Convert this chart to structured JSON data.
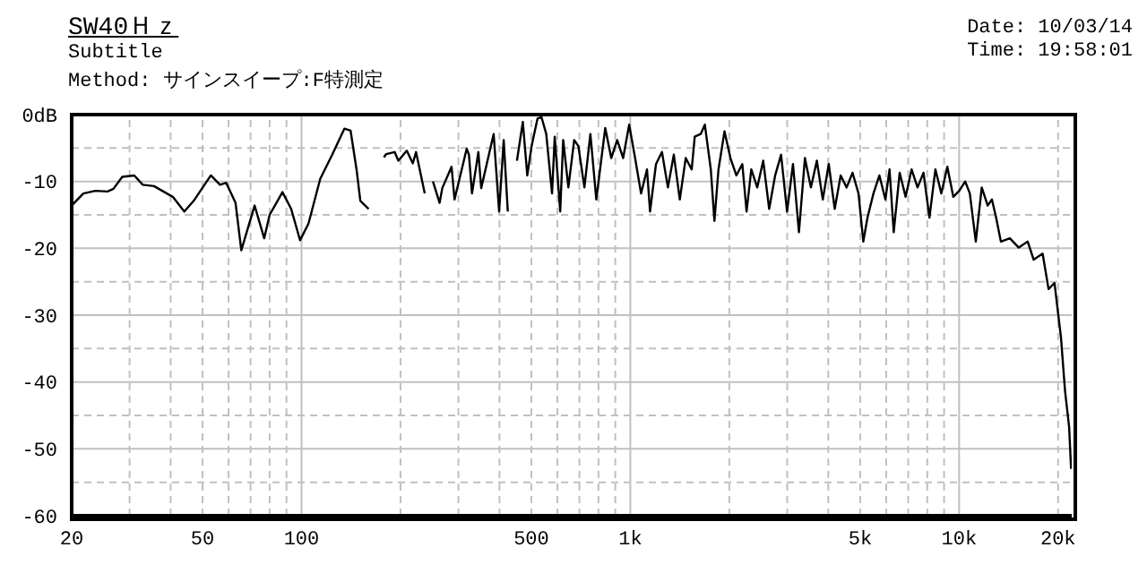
{
  "chart_data": {
    "type": "line",
    "title": "SW40Ｈｚ",
    "subtitle": "Subtitle",
    "annotations": [
      "Method: サインスイープ:F特測定",
      "Date: 10/03/14",
      "Time: 19:58:01"
    ],
    "log": "x",
    "grid": true,
    "marker": "none",
    "line_style": "solid",
    "xlim": [
      20,
      22000
    ],
    "xticks": [
      20,
      {
        "value": 30,
        "label": null
      },
      {
        "value": 40,
        "label": null
      },
      50,
      {
        "value": 60,
        "label": null
      },
      {
        "value": 70,
        "label": null
      },
      {
        "value": 80,
        "label": null
      },
      {
        "value": 90,
        "label": null
      },
      100,
      {
        "value": 200,
        "label": null
      },
      {
        "value": 300,
        "label": null
      },
      {
        "value": 400,
        "label": null
      },
      500,
      {
        "value": 600,
        "label": null
      },
      {
        "value": 700,
        "label": null
      },
      {
        "value": 800,
        "label": null
      },
      {
        "value": 900,
        "label": null
      },
      {
        "value": 1000,
        "label": "1k"
      },
      {
        "value": 2000,
        "label": null
      },
      {
        "value": 3000,
        "label": null
      },
      {
        "value": 4000,
        "label": null
      },
      {
        "value": 5000,
        "label": "5k"
      },
      {
        "value": 6000,
        "label": null
      },
      {
        "value": 7000,
        "label": null
      },
      {
        "value": 8000,
        "label": null
      },
      {
        "value": 9000,
        "label": null
      },
      {
        "value": 10000,
        "label": "10k"
      },
      {
        "value": 20000,
        "label": "20k"
      }
    ],
    "ylim": [
      -60,
      0
    ],
    "yticks": [
      {
        "value": 0,
        "label": "0dB"
      },
      {
        "value": -5,
        "label": null
      },
      -10,
      {
        "value": -15,
        "label": null
      },
      -20,
      {
        "value": -25,
        "label": null
      },
      -30,
      {
        "value": -35,
        "label": null
      },
      -40,
      {
        "value": -45,
        "label": null
      },
      -50,
      {
        "value": -55,
        "label": null
      },
      -60
    ],
    "series": [
      {
        "color": "#000000",
        "x": [
          20,
          21.7,
          23.6,
          25.7,
          26.8,
          28.5,
          31,
          32.9,
          35.6,
          40.6,
          44,
          47,
          53,
          56.5,
          59,
          63,
          65.6,
          72,
          77,
          80,
          87.5,
          93,
          99,
          105,
          114,
          124,
          135,
          141,
          147,
          151,
          160,
          168,
          178,
          181,
          192,
          197,
          209,
          218,
          223,
          237,
          245,
          251,
          263,
          268,
          286,
          292,
          318,
          323,
          330,
          345,
          352,
          375,
          384,
          399,
          412,
          424,
          438,
          452,
          471,
          486,
          501,
          522,
          537,
          555,
          578,
          589,
          612,
          625,
          648,
          675,
          695,
          725,
          756,
          788,
          839,
          875,
          912,
          951,
          992,
          1034,
          1078,
          1124,
          1148,
          1197,
          1248,
          1301,
          1356,
          1414,
          1474,
          1537,
          1570,
          1637,
          1685,
          1757,
          1802,
          1854,
          1934,
          2016,
          2101,
          2191,
          2257,
          2333,
          2432,
          2536,
          2644,
          2757,
          2874,
          2997,
          3124,
          3257,
          3396,
          3541,
          3692,
          3849,
          4013,
          4184,
          4362,
          4548,
          4741,
          4943,
          5112,
          5264,
          5488,
          5722,
          5966,
          6143,
          6325,
          6594,
          6875,
          7168,
          7473,
          7791,
          8123,
          8469,
          8830,
          9206,
          9598,
          10007,
          10433,
          10778,
          11237,
          11716,
          12215,
          12579,
          12954,
          13397,
          14262,
          15183,
          16164,
          16852,
          17942,
          18705,
          19501,
          20400,
          21000,
          21600,
          21900
        ],
        "values": [
          -13.6,
          -11.8,
          -11.4,
          -11.5,
          -11.1,
          -9.3,
          -9.1,
          -10.5,
          -10.7,
          -12.3,
          -14.5,
          -12.9,
          -9.1,
          -10.5,
          -10.2,
          -13.2,
          -20.3,
          -13.6,
          -18.5,
          -15,
          -11.6,
          -14.1,
          -18.8,
          -16.3,
          -9.6,
          -6,
          -2.1,
          -2.4,
          -8.2,
          -12.9,
          -14.1,
          null,
          -6.4,
          -5.9,
          -5.6,
          -6.9,
          -5.4,
          -7.3,
          -5.6,
          -11.8,
          null,
          -10,
          -13.2,
          -11,
          -7.8,
          -12.7,
          -5.1,
          -6,
          -11.8,
          -5.6,
          -11,
          -5.1,
          -2.9,
          -14.5,
          -3.8,
          -14.5,
          null,
          -6.9,
          -1.1,
          -9.1,
          -4.7,
          -0.6,
          -0.4,
          -2.9,
          -11.8,
          -3.3,
          -14.5,
          -3.8,
          -10.9,
          -3.8,
          -4.7,
          -10.9,
          -2.9,
          -12.7,
          -2,
          -6.5,
          -3.8,
          -6.5,
          -1.5,
          -6.5,
          -11.8,
          -8.2,
          -14.5,
          -7.4,
          -5.6,
          -10.9,
          -6,
          -12.7,
          -6.5,
          -8.2,
          -3.3,
          -2.9,
          -1.5,
          -8.2,
          -15.9,
          -8.2,
          -2.5,
          -6.5,
          -9.1,
          -7.4,
          -14.5,
          -8.2,
          -10.9,
          -6.9,
          -14.1,
          -9.1,
          -6,
          -14.5,
          -7.4,
          -17.6,
          -6.5,
          -10.9,
          -6.9,
          -12.7,
          -7.4,
          -14.1,
          -9.1,
          -10.9,
          -8.7,
          -11.8,
          -19,
          -15.4,
          -11.8,
          -9.1,
          -12.7,
          -8.2,
          -17.6,
          -8.7,
          -12.3,
          -8.2,
          -10.9,
          -8.7,
          -15.4,
          -8.2,
          -11.8,
          -7.8,
          -12.3,
          -11.4,
          -10,
          -11.8,
          -19,
          -10.9,
          -13.6,
          -12.7,
          -15.4,
          -19,
          -18.5,
          -19.9,
          -19,
          -21.7,
          -20.8,
          -26.1,
          -25.2,
          -33.3,
          -41.4,
          -46.7,
          -53
        ]
      }
    ]
  }
}
